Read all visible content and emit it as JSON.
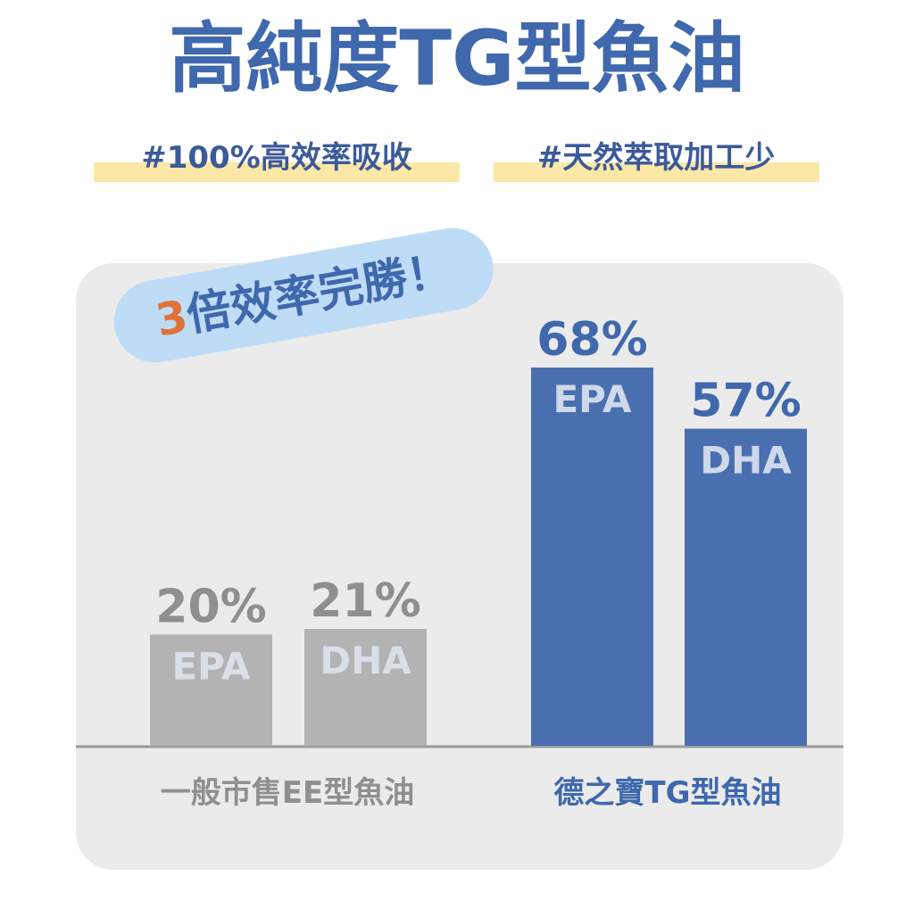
{
  "chart_data": {
    "type": "grouped-bar",
    "title": "高純度TG型魚油",
    "tags": [
      "#100%高效率吸收",
      "#天然萃取加工少"
    ],
    "badge": {
      "highlight": "3",
      "text": "倍效率完勝！"
    },
    "groups": [
      {
        "name": "一般市售EE型魚油",
        "color": "#b3b3b3",
        "label_color": "#8f8f8f",
        "categories": [
          "EPA",
          "DHA"
        ],
        "values": [
          20,
          21
        ],
        "value_labels": [
          "20%",
          "21%"
        ]
      },
      {
        "name": "德之寶TG型魚油",
        "color": "#4a6fb0",
        "label_color": "#3f68ad",
        "categories": [
          "EPA",
          "DHA"
        ],
        "values": [
          68,
          57
        ],
        "value_labels": [
          "68%",
          "57%"
        ]
      }
    ]
  }
}
